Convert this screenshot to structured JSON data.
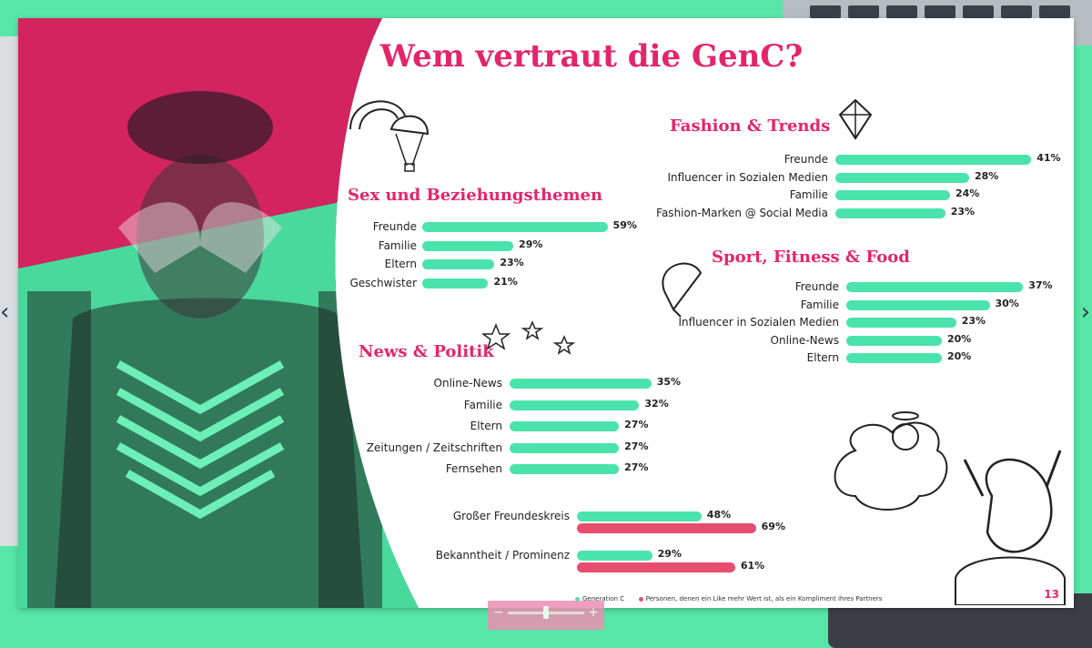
{
  "slide": {
    "title": "Wem vertraut die GenC?",
    "page_number": "13"
  },
  "legend": {
    "genc_label": "Generation C",
    "partner_label": "Personen, denen ein Like mehr Wert ist, als ein Kompliment ihres Partners"
  },
  "colors": {
    "accent": "#e3256b",
    "genc": "#4be3ad",
    "partner": "#e74d6f",
    "desk": "#57e6a8"
  },
  "zoom": {
    "minus": "−",
    "plus": "+",
    "level": 0.5
  },
  "chart_data": [
    {
      "type": "bar",
      "orientation": "horizontal",
      "title": "Sex und Beziehungsthemen",
      "categories": [
        "Freunde",
        "Familie",
        "Eltern",
        "Geschwister"
      ],
      "values": [
        59,
        29,
        23,
        21
      ],
      "value_labels": [
        "59%",
        "29%",
        "23%",
        "21%"
      ]
    },
    {
      "type": "bar",
      "orientation": "horizontal",
      "title": "Fashion & Trends",
      "categories": [
        "Freunde",
        "Influencer in Sozialen Medien",
        "Familie",
        "Fashion-Marken @ Social Media"
      ],
      "values": [
        41,
        28,
        24,
        23
      ],
      "value_labels": [
        "41%",
        "28%",
        "24%",
        "23%"
      ]
    },
    {
      "type": "bar",
      "orientation": "horizontal",
      "title": "Sport, Fitness & Food",
      "categories": [
        "Freunde",
        "Familie",
        "Influencer in Sozialen Medien",
        "Online-News",
        "Eltern"
      ],
      "values": [
        37,
        30,
        23,
        20,
        20
      ],
      "value_labels": [
        "37%",
        "30%",
        "23%",
        "20%",
        "20%"
      ]
    },
    {
      "type": "bar",
      "orientation": "horizontal",
      "title": "News & Politik",
      "categories": [
        "Online-News",
        "Familie",
        "Eltern",
        "Zeitungen / Zeitschriften",
        "Fernsehen"
      ],
      "values": [
        35,
        32,
        27,
        27,
        27
      ],
      "value_labels": [
        "35%",
        "32%",
        "27%",
        "27%",
        "27%"
      ]
    },
    {
      "type": "bar",
      "orientation": "horizontal",
      "title": "",
      "categories": [
        "Großer Freundeskreis",
        "Bekanntheit / Prominenz"
      ],
      "series": [
        {
          "name": "Generation C",
          "values": [
            48,
            29
          ],
          "value_labels": [
            "48%",
            "29%"
          ]
        },
        {
          "name": "Personen, denen ein Like mehr Wert ist, als ein Kompliment ihres Partners",
          "values": [
            69,
            61
          ],
          "value_labels": [
            "69%",
            "61%"
          ]
        }
      ]
    }
  ]
}
